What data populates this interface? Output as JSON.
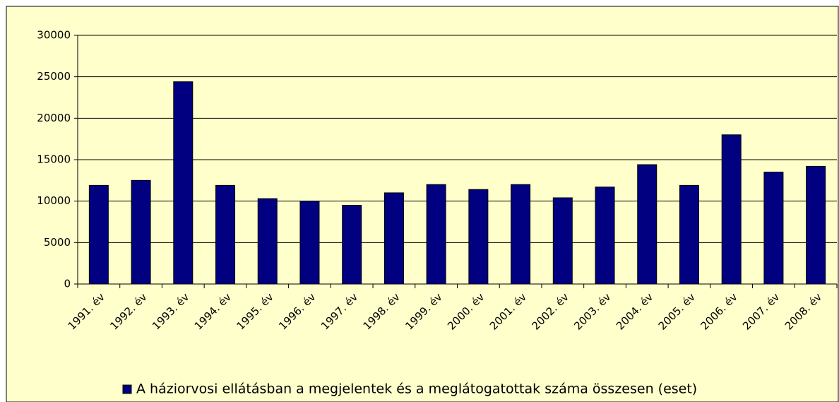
{
  "chart_data": {
    "type": "bar",
    "categories": [
      "1991. év",
      "1992. év",
      "1993. év",
      "1994. év",
      "1995. év",
      "1996. év",
      "1997. év",
      "1998. év",
      "1999. év",
      "2000. év",
      "2001. év",
      "2002. év",
      "2003. év",
      "2004. év",
      "2005. év",
      "2006. év",
      "2007. év",
      "2008. év"
    ],
    "series": [
      {
        "name": "A háziorvosi ellátásban a megjelentek és a meglátogatottak száma összesen (eset)",
        "color": "#000080",
        "values": [
          11900,
          12500,
          24400,
          11900,
          10300,
          10000,
          9500,
          11000,
          12000,
          11400,
          12000,
          10400,
          11700,
          14400,
          11900,
          18000,
          13500,
          14200
        ]
      }
    ],
    "ylim": [
      0,
      30000
    ],
    "yticks": [
      0,
      5000,
      10000,
      15000,
      20000,
      25000,
      30000
    ],
    "grid": true,
    "legend": "bottom"
  }
}
